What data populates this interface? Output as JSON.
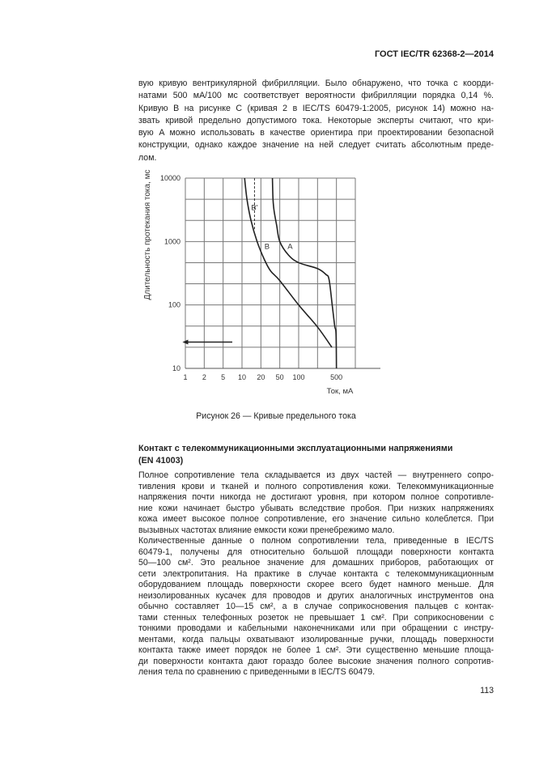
{
  "header": {
    "doc_id": "ГОСТ IEC/TR 62368-2—2014"
  },
  "intro_lines": [
    "вую кривую вентрикулярной фибрилляции. Было обнаружено, что точка с коорди-",
    "натами 500 мА/100 мс соответствует вероятности фибрилляции порядка 0,14 %.",
    "Кривую B на рисунке С (кривая 2 в IEC/TS 60479-1:2005, рисунок 14) можно на-",
    "звать кривой предельно допустимого тока. Некоторые эксперты считают, что кри-",
    "вую A можно использовать в качестве ориентира при проектировании безопасной",
    "конструкции, однако каждое значение на ней следует считать абсолютным преде-",
    "лом."
  ],
  "figure_caption": "Рисунок 26 — Кривые предельного тока",
  "section_heading": [
    "Контакт с телекоммуникационными эксплуатационными напряжениями",
    "(EN 41003)"
  ],
  "body_lines": [
    "Полное сопротивление тела складывается из двух частей — внутреннего сопро-",
    "тивления крови и тканей и полного сопротивления кожи. Телекоммуникационные",
    "напряжения почти никогда не достигают уровня, при котором полное сопротивле-",
    "ние кожи начинает быстро убывать вследствие пробоя. При низких напряжениях",
    "кожа имеет высокое полное сопротивление, его значение сильно колеблется. При",
    "вызывных частотах влияние емкости кожи пренебрежимо мало.",
    "Количественные данные о полном сопротивлении тела, приведенные в IEC/TS",
    "60479-1, получены для относительно большой площади поверхности контакта",
    "50—100 см². Это реальное значение для домашних приборов, работающих от",
    "сети электропитания. На практике в случае контакта с телекоммуникационным",
    "оборудованием площадь поверхности скорее всего будет намного меньше. Для",
    "неизолированных кусачек для проводов и других аналогичных инструментов она",
    "обычно составляет 10—15 см², а в случае соприкосновения пальцев с контак-",
    "тами стенных телефонных розеток не превышает 1 см². При соприкосновении с",
    "тонкими проводами и кабельными наконечниками или при обращении с инстру-",
    "ментами, когда пальцы охватывают изолированные ручки, площадь поверхности",
    "контакта также имеет порядок не более 1 см². Эти существенно меньшие площа-",
    "ди поверхности контакта дают гораздо более высокие значения полного сопротив-",
    "ления тела по сравнению с приведенными в IEC/TS 60479."
  ],
  "page_number": "113",
  "chart_data": {
    "type": "line",
    "xlabel": "Ток, мА",
    "ylabel": "Длительность протекания тока, мс",
    "x_scale": "log (grid at 1-2-5 steps)",
    "y_scale": "log (grid at 1-2-5 steps)",
    "x_grid": [
      1,
      2,
      5,
      10,
      20,
      50,
      100,
      200,
      500,
      1000
    ],
    "x_tick_labels": [
      "1",
      "2",
      "5",
      "10",
      "20",
      "50",
      "100",
      "",
      "500",
      ""
    ],
    "y_grid": [
      10,
      20,
      50,
      100,
      200,
      500,
      1000,
      2000,
      5000,
      10000
    ],
    "y_tick_labels": [
      "10",
      "",
      "",
      "100",
      "",
      "",
      "1000",
      "",
      "",
      "10000"
    ],
    "grid": true,
    "series": [
      {
        "name": "A",
        "style": "solid",
        "points": [
          [
            35,
            10000
          ],
          [
            36,
            5000
          ],
          [
            38,
            3000
          ],
          [
            43,
            1700
          ],
          [
            50,
            1000
          ],
          [
            69,
            640
          ],
          [
            100,
            500
          ],
          [
            200,
            387
          ],
          [
            300,
            300
          ],
          [
            350,
            240
          ],
          [
            410,
            96
          ],
          [
            460,
            50
          ],
          [
            490,
            36
          ],
          [
            500,
            10
          ]
        ]
      },
      {
        "name": "B",
        "style": "solid",
        "points": [
          [
            11,
            10000
          ],
          [
            12,
            5000
          ],
          [
            13.9,
            2000
          ],
          [
            17.4,
            1000
          ],
          [
            23.8,
            550
          ],
          [
            32,
            350
          ],
          [
            50,
            230
          ],
          [
            100,
            100
          ],
          [
            200,
            48
          ],
          [
            400,
            20
          ]
        ]
      },
      {
        "name": "B'",
        "style": "dashed",
        "points": [
          [
            15.8,
            10000
          ],
          [
            15.8,
            1500
          ]
        ]
      }
    ],
    "labels": [
      {
        "text": "B'",
        "x": 15.8,
        "y": 3500
      },
      {
        "text": "B",
        "x": 27,
        "y": 850
      },
      {
        "text": "A",
        "x": 73,
        "y": 850
      }
    ],
    "arrow": {
      "from": [
        7,
        25
      ],
      "to": [
        0.9,
        25
      ],
      "direction": "left"
    }
  }
}
